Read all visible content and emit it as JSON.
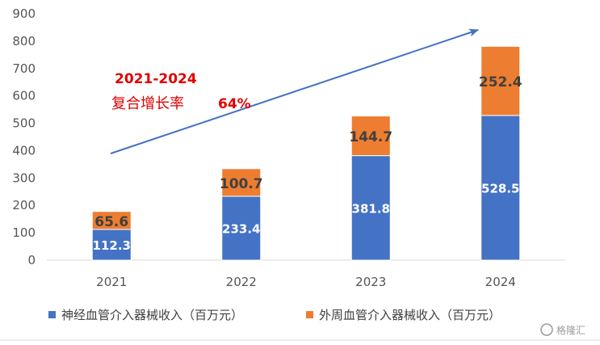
{
  "chart_data": {
    "type": "bar",
    "stacked": true,
    "categories": [
      "2021",
      "2022",
      "2023",
      "2024"
    ],
    "series": [
      {
        "name": "神经血管介入器械收入（百万元）",
        "values": [
          112.3,
          233.4,
          381.8,
          528.5
        ],
        "color": "#4472c4",
        "labels": [
          "112.3",
          "233.4",
          "381.8",
          "528.5"
        ]
      },
      {
        "name": "外周血管介入器械收入（百万元）",
        "values": [
          65.6,
          100.7,
          144.7,
          252.4
        ],
        "color": "#ed7d31",
        "labels": [
          "65.6",
          "100.7",
          "144.7",
          "252.4"
        ]
      }
    ],
    "yticks": [
      "0",
      "100",
      "200",
      "300",
      "400",
      "500",
      "600",
      "700",
      "800",
      "900"
    ],
    "ylim": [
      0,
      900
    ],
    "grid": false,
    "legend_position": "bottom",
    "annotation": {
      "line1": "2021-2024",
      "line2_text": "复合增长率",
      "line2_value": "64%",
      "color": "#e00000"
    },
    "trend_arrow_color": "#4472c4"
  },
  "watermark": {
    "text": "格隆汇"
  }
}
